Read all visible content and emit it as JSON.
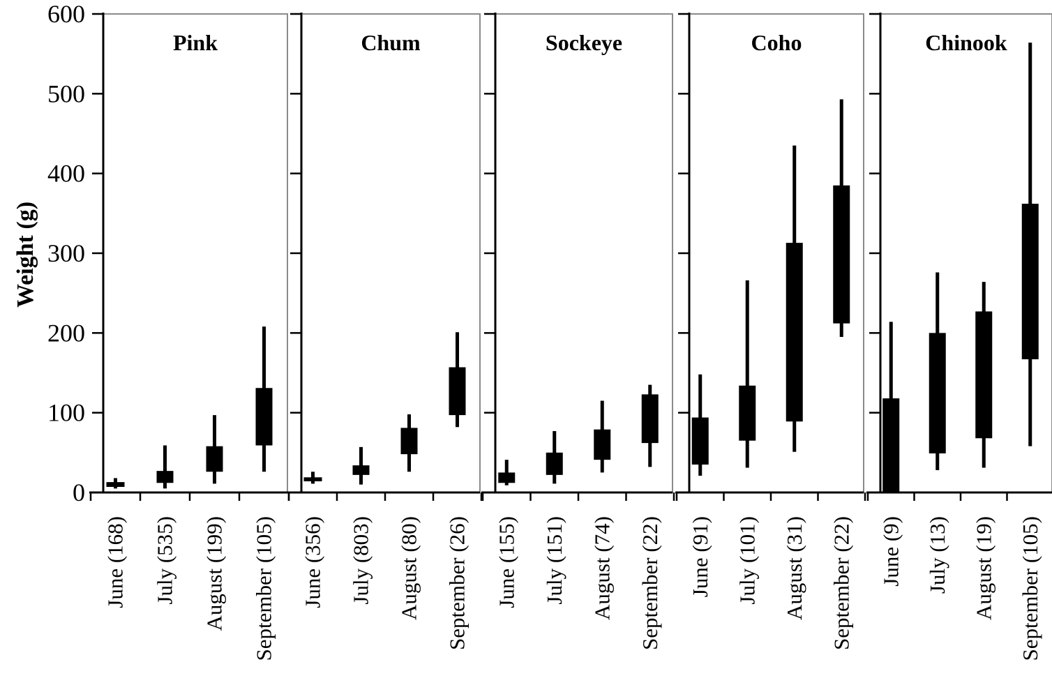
{
  "chart_data": {
    "type": "box",
    "ylabel": "Weight (g)",
    "ylim": [
      0,
      600
    ],
    "yticks": [
      0,
      100,
      200,
      300,
      400,
      500,
      600
    ],
    "value_keys": [
      "min",
      "q1",
      "q3",
      "max"
    ],
    "panels": [
      {
        "title": "Pink",
        "categories": [
          "June (168)",
          "July (535)",
          "August (199)",
          "September (105)"
        ],
        "boxes": [
          {
            "min": 5,
            "q1": 7,
            "q3": 13,
            "max": 18
          },
          {
            "min": 5,
            "q1": 12,
            "q3": 27,
            "max": 59
          },
          {
            "min": 11,
            "q1": 26,
            "q3": 58,
            "max": 97
          },
          {
            "min": 26,
            "q1": 59,
            "q3": 131,
            "max": 208
          }
        ]
      },
      {
        "title": "Chum",
        "categories": [
          "June (356)",
          "July (803)",
          "August (80)",
          "September (26)"
        ],
        "boxes": [
          {
            "min": 11,
            "q1": 14,
            "q3": 19,
            "max": 26
          },
          {
            "min": 10,
            "q1": 22,
            "q3": 34,
            "max": 57
          },
          {
            "min": 26,
            "q1": 48,
            "q3": 81,
            "max": 98
          },
          {
            "min": 82,
            "q1": 97,
            "q3": 157,
            "max": 201
          }
        ]
      },
      {
        "title": "Sockeye",
        "categories": [
          "June (155)",
          "July (151)",
          "August (74)",
          "September (22)"
        ],
        "boxes": [
          {
            "min": 9,
            "q1": 12,
            "q3": 25,
            "max": 41
          },
          {
            "min": 11,
            "q1": 22,
            "q3": 50,
            "max": 77
          },
          {
            "min": 25,
            "q1": 41,
            "q3": 79,
            "max": 115
          },
          {
            "min": 32,
            "q1": 62,
            "q3": 123,
            "max": 135
          }
        ]
      },
      {
        "title": "Coho",
        "categories": [
          "June (91)",
          "July (101)",
          "August (31)",
          "September (22)"
        ],
        "boxes": [
          {
            "min": 21,
            "q1": 35,
            "q3": 94,
            "max": 148
          },
          {
            "min": 31,
            "q1": 65,
            "q3": 134,
            "max": 266
          },
          {
            "min": 51,
            "q1": 89,
            "q3": 313,
            "max": 435
          },
          {
            "min": 195,
            "q1": 212,
            "q3": 385,
            "max": 493
          }
        ]
      },
      {
        "title": "Chinook",
        "categories": [
          "June (9)",
          "July (13)",
          "August (19)",
          "September (105)"
        ],
        "boxes": [
          {
            "min": 0,
            "q1": 0,
            "q3": 118,
            "max": 214
          },
          {
            "min": 28,
            "q1": 49,
            "q3": 200,
            "max": 276
          },
          {
            "min": 31,
            "q1": 68,
            "q3": 227,
            "max": 264
          },
          {
            "min": 58,
            "q1": 167,
            "q3": 362,
            "max": 564
          }
        ]
      }
    ]
  }
}
